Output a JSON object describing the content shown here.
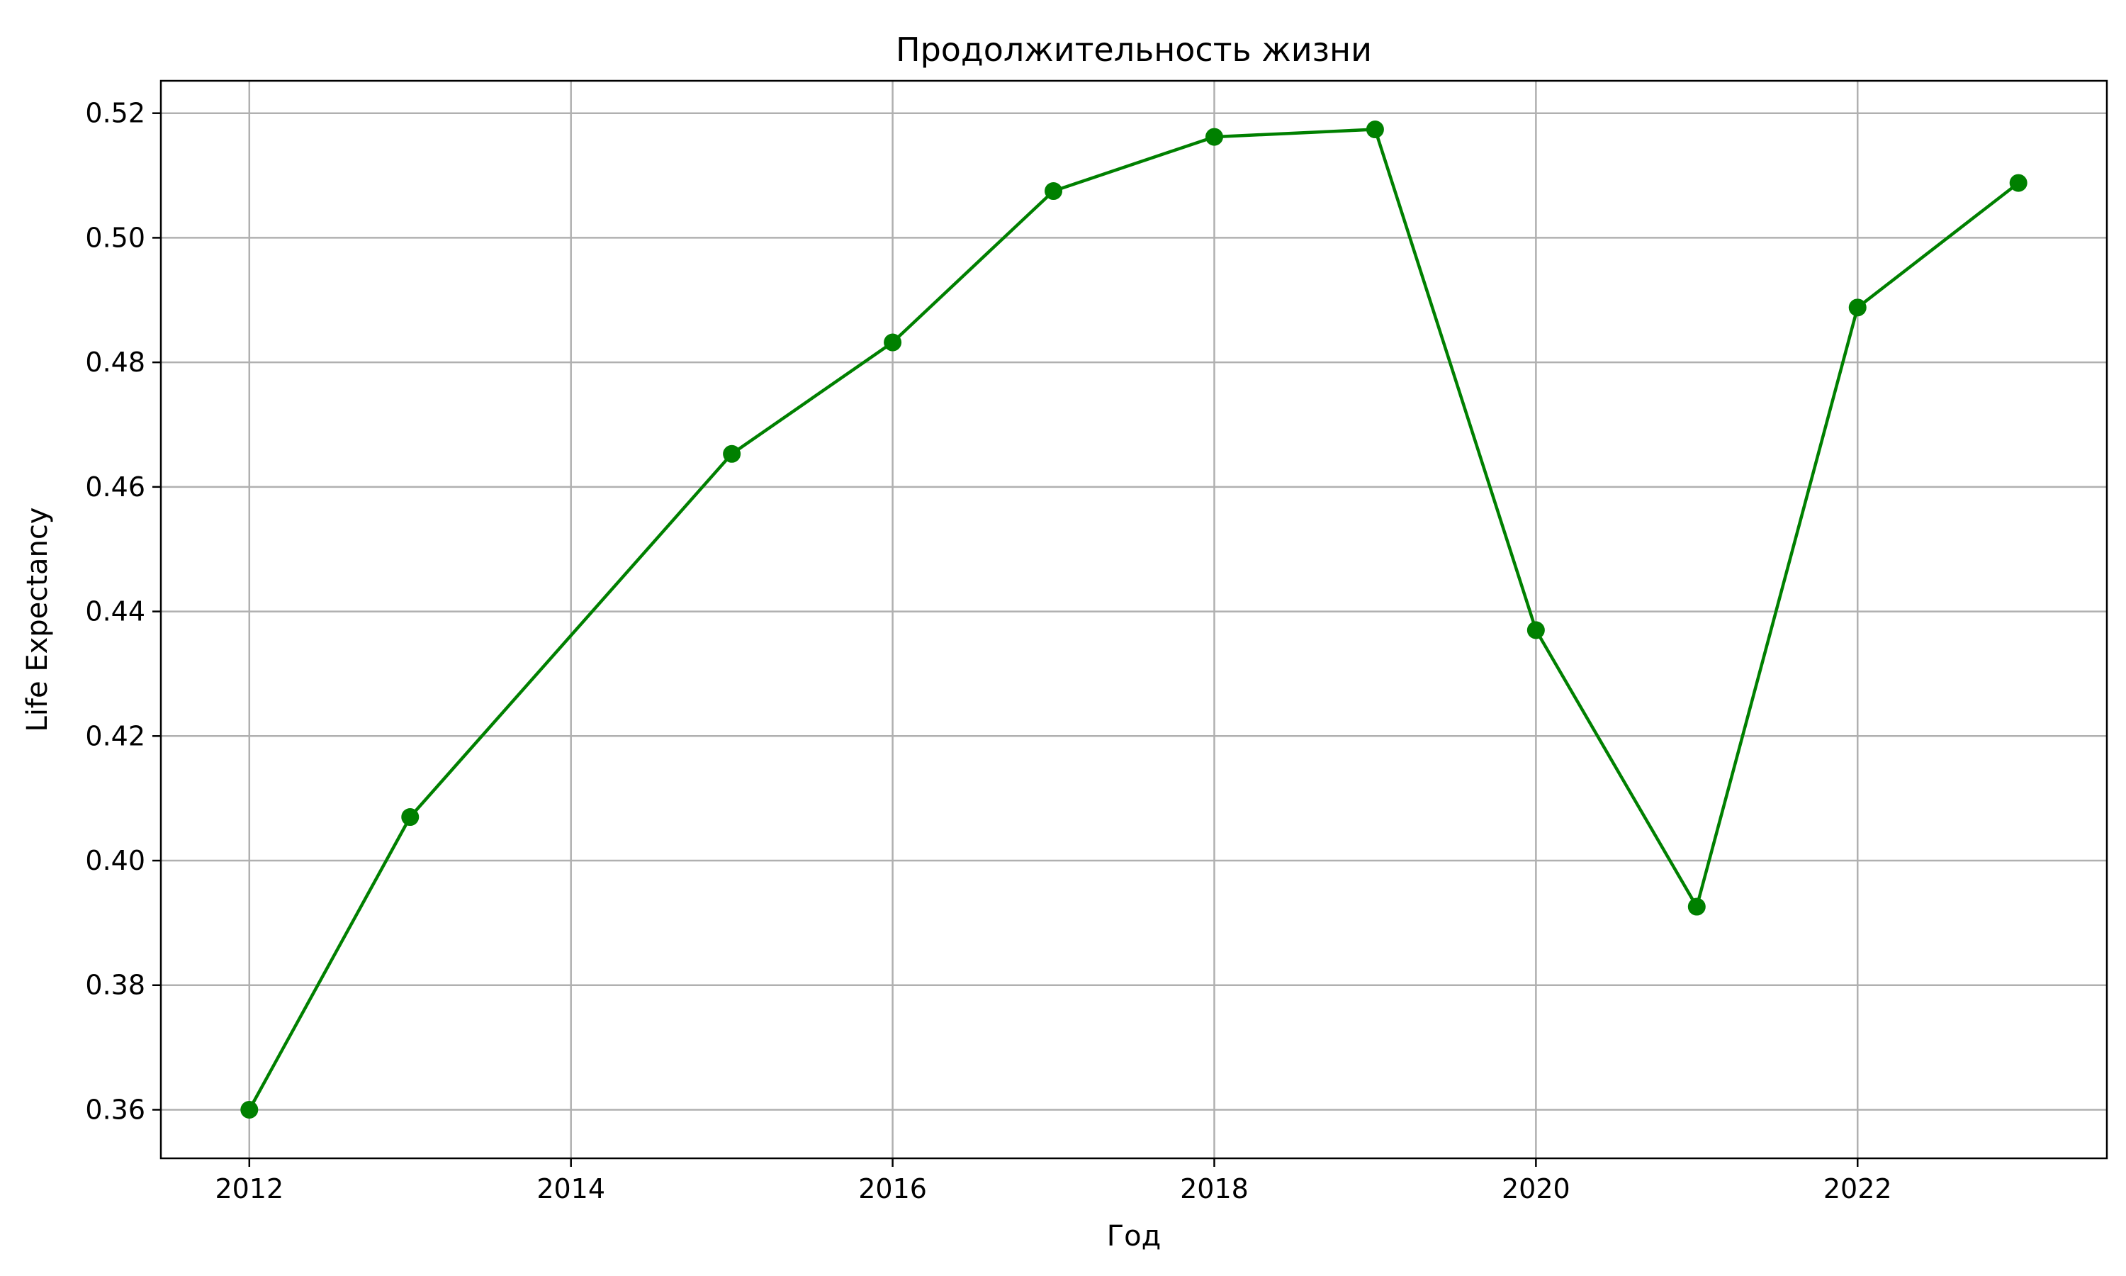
{
  "chart_data": {
    "type": "line",
    "title": "Продолжительность жизни",
    "xlabel": "Год",
    "ylabel": "Life Expectancy",
    "x": [
      2012,
      2013,
      2015,
      2016,
      2017,
      2018,
      2019,
      2020,
      2021,
      2022,
      2023
    ],
    "series": [
      {
        "values": [
          0.36,
          0.407,
          0.4653,
          0.4832,
          0.5075,
          0.5162,
          0.5174,
          0.437,
          0.3926,
          0.4888,
          0.5088
        ]
      }
    ],
    "xlim": [
      2011.45,
      2023.55
    ],
    "ylim": [
      0.3522,
      0.5252
    ],
    "xticks": [
      2012,
      2014,
      2016,
      2018,
      2020,
      2022
    ],
    "yticks": [
      0.36,
      0.38,
      0.4,
      0.42,
      0.44,
      0.46,
      0.48,
      0.5,
      0.52
    ],
    "ytick_labels": [
      "0.36",
      "0.38",
      "0.40",
      "0.42",
      "0.44",
      "0.46",
      "0.48",
      "0.50",
      "0.52"
    ],
    "grid": true,
    "line_color": "#008000",
    "marker": "circle"
  }
}
